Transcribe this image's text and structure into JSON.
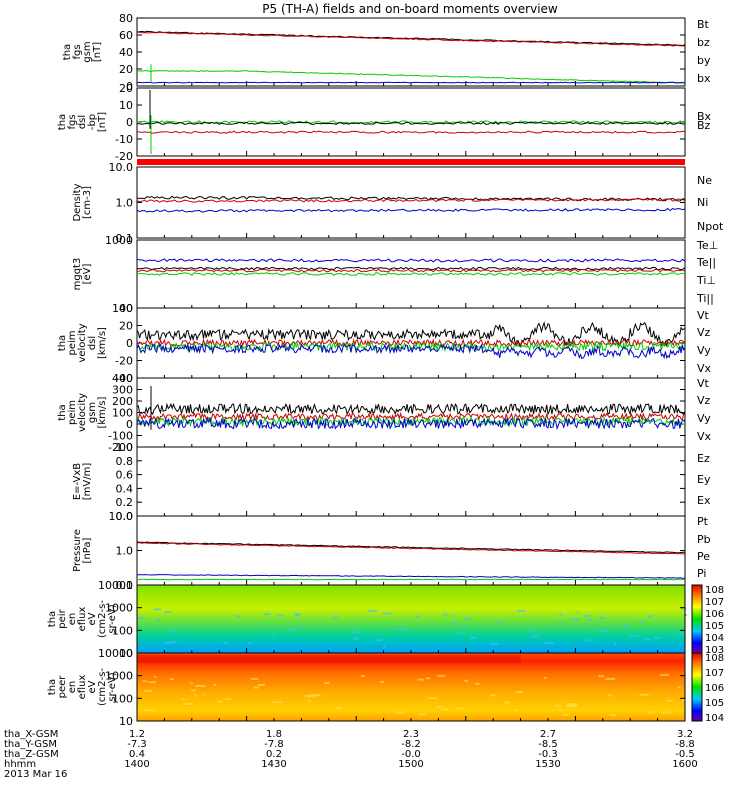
{
  "title": "P5 (TH-A) fields and on-board moments overview",
  "footer": {
    "row_labels": [
      "tha_X-GSM",
      "tha_Y-GSM",
      "tha_Z-GSM",
      "hhmm",
      "2013 Mar 16"
    ],
    "columns": [
      [
        "1.2",
        "-7.3",
        "0.4",
        "1400"
      ],
      [
        "1.8",
        "-7.8",
        "0.2",
        "1430"
      ],
      [
        "2.3",
        "-8.2",
        "-0.0",
        "1500"
      ],
      [
        "2.7",
        "-8.5",
        "-0.3",
        "1530"
      ],
      [
        "3.2",
        "-8.8",
        "-0.5",
        "1600"
      ]
    ]
  },
  "colors": {
    "black": "#000000",
    "red": "#cc0000",
    "green": "#00cc00",
    "blue": "#0000cc",
    "red_bar": "#ff0000"
  },
  "colorbars": [
    {
      "ticks": [
        "10^8",
        "10^7",
        "10^6",
        "10^5",
        "10^4",
        "10^3"
      ]
    },
    {
      "ticks": [
        "10^8",
        "10^7",
        "10^6",
        "10^5",
        "10^4"
      ]
    }
  ],
  "chart_data": [
    {
      "type": "line",
      "ylabel": [
        "tha",
        "fgs",
        "gsm",
        "[nT]"
      ],
      "ticks": [
        "80",
        "60",
        "40",
        "20",
        "0"
      ],
      "legend": [
        {
          "name": "Bt",
          "color": "#000000"
        },
        {
          "name": "bz",
          "color": "#cc0000"
        },
        {
          "name": "by",
          "color": "#00cc00"
        },
        {
          "name": "bx",
          "color": "#0000cc"
        }
      ]
    },
    {
      "type": "line",
      "ylabel": [
        "tha",
        "fgs",
        "dsl",
        "-bp",
        "[nT]"
      ],
      "ticks": [
        "20",
        "10",
        "0",
        "-10",
        "-20"
      ],
      "legend": [
        {
          "name": "Bx",
          "color": "#00cc00"
        },
        {
          "name": "Bz",
          "color": "#cc0000"
        }
      ]
    },
    {
      "type": "line",
      "ylabel": [
        "Density",
        "[cm-3]"
      ],
      "ticks": [
        "10.0",
        "1.0",
        "0.1"
      ],
      "legend": [
        {
          "name": "Ne",
          "color": "#cc0000"
        },
        {
          "name": "Ni",
          "color": "#000000"
        },
        {
          "name": "Npot",
          "color": "#0000cc"
        }
      ]
    },
    {
      "type": "line",
      "ylabel": [
        "mgqt3",
        "[eV]"
      ],
      "ticks": [
        "1000",
        "100"
      ],
      "legend": [
        {
          "name": "Te⊥",
          "color": "#cc0000"
        },
        {
          "name": "Te||",
          "color": "#000000"
        },
        {
          "name": "Ti⊥",
          "color": "#0000cc"
        },
        {
          "name": "Ti||",
          "color": "#00cc00"
        }
      ]
    },
    {
      "type": "line",
      "ylabel": [
        "tha",
        "peim",
        "velocity",
        "dsl",
        "[km/s]"
      ],
      "ticks": [
        "40",
        "20",
        "0",
        "-20",
        "-40"
      ],
      "legend": [
        {
          "name": "Vt",
          "color": "#000000"
        },
        {
          "name": "Vz",
          "color": "#cc0000"
        },
        {
          "name": "Vy",
          "color": "#00cc00"
        },
        {
          "name": "Vx",
          "color": "#0000cc"
        }
      ]
    },
    {
      "type": "line",
      "ylabel": [
        "tha",
        "peim",
        "velocity",
        "gsm",
        "[km/s]"
      ],
      "ticks": [
        "400",
        "300",
        "200",
        "100",
        "0",
        "-100",
        "-200"
      ],
      "legend": [
        {
          "name": "Vt",
          "color": "#000000"
        },
        {
          "name": "Vz",
          "color": "#cc0000"
        },
        {
          "name": "Vy",
          "color": "#00cc00"
        },
        {
          "name": "Vx",
          "color": "#0000cc"
        }
      ]
    },
    {
      "type": "line",
      "ylabel": [
        "E=-VxB",
        "[mV/m]"
      ],
      "ticks": [
        "1.0",
        "0.8",
        "0.6",
        "0.4",
        "0.2",
        "0.0"
      ],
      "legend": [
        {
          "name": "Ez",
          "color": "#cc0000"
        },
        {
          "name": "Ey",
          "color": "#00cc00"
        },
        {
          "name": "Ex",
          "color": "#0000cc"
        }
      ]
    },
    {
      "type": "line",
      "ylabel": [
        "Pressure",
        "[nPa]"
      ],
      "ticks": [
        "10.0",
        "1.0",
        "0.1"
      ],
      "legend": [
        {
          "name": "Pt",
          "color": "#000000"
        },
        {
          "name": "Pb",
          "color": "#cc0000"
        },
        {
          "name": "Pe",
          "color": "#00cc00"
        },
        {
          "name": "Pi",
          "color": "#0000cc"
        }
      ]
    },
    {
      "type": "heatmap",
      "ylabel": [
        "tha",
        "peir",
        "en",
        "eflux",
        "eV",
        "(cm2-s-",
        "sr-eV)"
      ],
      "ticks": [
        "10000",
        "1000",
        "100",
        "10"
      ],
      "legend": []
    },
    {
      "type": "heatmap",
      "ylabel": [
        "tha",
        "peer",
        "en",
        "eflux",
        "eV",
        "(cm2-s-",
        "sr-eV)"
      ],
      "ticks": [
        "10000",
        "1000",
        "100",
        "10"
      ],
      "legend": []
    }
  ]
}
